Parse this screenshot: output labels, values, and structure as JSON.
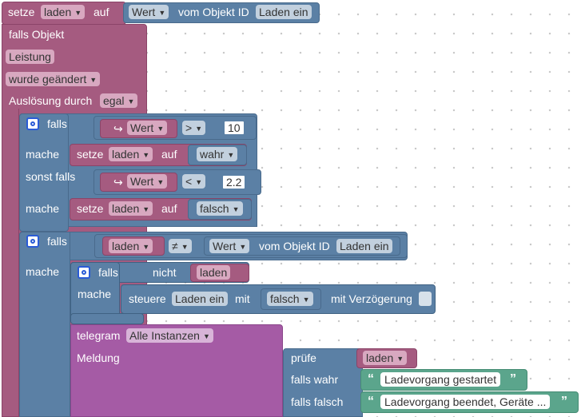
{
  "outer": {
    "setze": "setze",
    "var_laden": "laden",
    "auf": "auf",
    "wert": "Wert",
    "vom_objekt_id": "vom Objekt ID",
    "object_id": "Laden ein"
  },
  "trigger": {
    "falls_objekt": "falls Objekt",
    "object": "Leistung",
    "wurde_geaendert": "wurde geändert",
    "ausloesung_durch": "Auslösung durch",
    "egal": "egal"
  },
  "if1": {
    "falls": "falls",
    "arrow_icon": "↪",
    "wert": "Wert",
    "op_gt": ">",
    "value_10": "10",
    "mache": "mache",
    "setze": "setze",
    "var": "laden",
    "auf": "auf",
    "wahr": "wahr",
    "sonst_falls": "sonst falls",
    "op_lt": "<",
    "value_2_2": "2.2",
    "mache2": "mache",
    "setze2": "setze",
    "var2": "laden",
    "auf2": "auf",
    "falsch": "falsch"
  },
  "if2": {
    "falls": "falls",
    "var": "laden",
    "op_ne": "≠",
    "wert": "Wert",
    "vom_objekt_id": "vom Objekt ID",
    "object_id": "Laden ein",
    "mache": "mache",
    "inner_falls": "falls",
    "nicht": "nicht",
    "inner_var": "laden",
    "inner_mache": "mache",
    "steuere": "steuere",
    "steuere_id": "Laden ein",
    "mit": "mit",
    "falsch": "falsch",
    "mit_verzoegerung": "mit Verzögerung"
  },
  "telegram": {
    "label": "telegram",
    "instances": "Alle Instanzen",
    "meldung": "Meldung",
    "pruefe": "prüfe",
    "var": "laden",
    "falls_wahr": "falls wahr",
    "msg_true": "Ladevorgang gestartet",
    "falls_falsch": "falls falsch",
    "msg_false": "Ladevorgang beendet, Geräte ...",
    "quote_open": "“",
    "quote_close": "”"
  }
}
